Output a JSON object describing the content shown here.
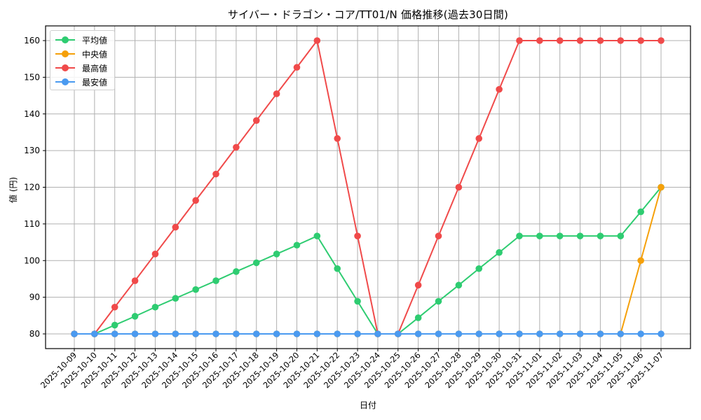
{
  "chart_data": {
    "type": "line",
    "title": "サイバー・ドラゴン・コア/TT01/N 価格推移(過去30日間)",
    "xlabel": "日付",
    "ylabel": "値 (円)",
    "ylim": [
      76,
      164
    ],
    "yticks": [
      80,
      90,
      100,
      110,
      120,
      130,
      140,
      150,
      160
    ],
    "grid": true,
    "legend_position": "upper left",
    "categories": [
      "2025-10-09",
      "2025-10-10",
      "2025-10-11",
      "2025-10-12",
      "2025-10-13",
      "2025-10-14",
      "2025-10-15",
      "2025-10-16",
      "2025-10-17",
      "2025-10-18",
      "2025-10-19",
      "2025-10-20",
      "2025-10-21",
      "2025-10-22",
      "2025-10-23",
      "2025-10-24",
      "2025-10-25",
      "2025-10-26",
      "2025-10-27",
      "2025-10-28",
      "2025-10-29",
      "2025-10-30",
      "2025-10-31",
      "2025-11-01",
      "2025-11-02",
      "2025-11-03",
      "2025-11-04",
      "2025-11-05",
      "2025-11-06",
      "2025-11-07"
    ],
    "series": [
      {
        "name": "平均値",
        "color": "#2ecc71",
        "values": [
          80,
          80,
          82.4,
          84.8,
          87.3,
          89.7,
          92.1,
          94.5,
          97.0,
          99.4,
          101.8,
          104.2,
          106.7,
          97.8,
          88.9,
          80,
          80,
          84.4,
          88.9,
          93.3,
          97.8,
          102.2,
          106.7,
          106.7,
          106.7,
          106.7,
          106.7,
          106.7,
          113.3,
          120
        ]
      },
      {
        "name": "中央値",
        "color": "#f5a00a",
        "values": [
          80,
          80,
          80,
          80,
          80,
          80,
          80,
          80,
          80,
          80,
          80,
          80,
          80,
          80,
          80,
          80,
          80,
          80,
          80,
          80,
          80,
          80,
          80,
          80,
          80,
          80,
          80,
          80,
          100,
          120
        ]
      },
      {
        "name": "最高値",
        "color": "#f04a4a",
        "values": [
          80,
          80,
          87.3,
          94.5,
          101.8,
          109.1,
          116.4,
          123.6,
          130.9,
          138.2,
          145.5,
          152.7,
          160,
          133.3,
          106.7,
          80,
          80,
          93.3,
          106.7,
          120,
          133.3,
          146.7,
          160,
          160,
          160,
          160,
          160,
          160,
          160,
          160
        ]
      },
      {
        "name": "最安値",
        "color": "#4a9af0",
        "values": [
          80,
          80,
          80,
          80,
          80,
          80,
          80,
          80,
          80,
          80,
          80,
          80,
          80,
          80,
          80,
          80,
          80,
          80,
          80,
          80,
          80,
          80,
          80,
          80,
          80,
          80,
          80,
          80,
          80,
          80
        ]
      }
    ]
  }
}
